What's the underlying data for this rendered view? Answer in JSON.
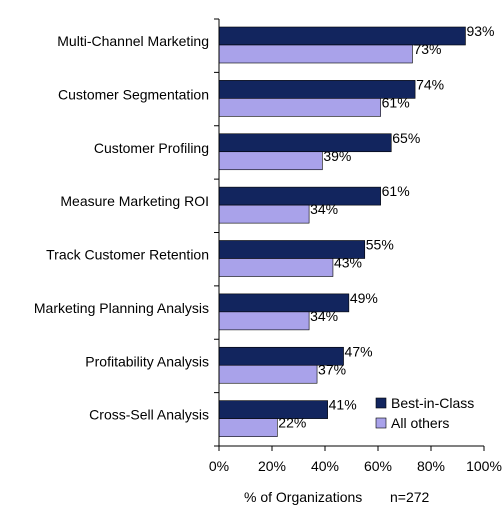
{
  "chart_data": {
    "type": "bar",
    "orientation": "horizontal",
    "categories": [
      "Multi-Channel Marketing",
      "Customer Segmentation",
      "Customer Profiling",
      "Measure Marketing ROI",
      "Track Customer Retention",
      "Marketing Planning Analysis",
      "Profitability Analysis",
      "Cross-Sell Analysis"
    ],
    "series": [
      {
        "name": "Best-in-Class",
        "color": "#12255e",
        "values": [
          93,
          74,
          65,
          61,
          55,
          49,
          47,
          41
        ],
        "labels": [
          "93%",
          "74%",
          "65%",
          "61%",
          "55%",
          "49%",
          "47%",
          "41%"
        ]
      },
      {
        "name": "All others",
        "color": "#a9a2ea",
        "values": [
          73,
          61,
          39,
          34,
          43,
          34,
          37,
          22
        ],
        "labels": [
          "73%",
          "61%",
          "39%",
          "34%",
          "43%",
          "34%",
          "37%",
          "22%"
        ]
      }
    ],
    "xlim": [
      0,
      100
    ],
    "xticks": [
      0,
      20,
      40,
      60,
      80,
      100
    ],
    "xtick_labels": [
      "0%",
      "20%",
      "40%",
      "60%",
      "80%",
      "100%"
    ],
    "xlabel": "% of Organizations",
    "annotation": "n=272",
    "title": "",
    "ylabel": "",
    "grid": false,
    "legend_position": "bottom-right"
  }
}
